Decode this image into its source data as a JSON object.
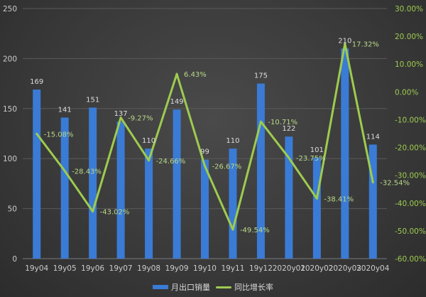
{
  "chart_data": {
    "type": "bar+line",
    "categories": [
      "19y04",
      "19y05",
      "19y06",
      "19y07",
      "19y08",
      "19y09",
      "19y10",
      "19y11",
      "19y12",
      "2020y01",
      "2020y02",
      "2020y03",
      "2020y04"
    ],
    "series": [
      {
        "name": "月出口销量",
        "type": "bar",
        "axis": "left",
        "values": [
          169,
          141,
          151,
          137,
          110,
          149,
          99,
          110,
          175,
          122,
          101,
          210,
          114
        ],
        "labels": [
          "169",
          "141",
          "151",
          "137",
          "110",
          "149",
          "99",
          "110",
          "175",
          "122",
          "101",
          "210",
          "114"
        ]
      },
      {
        "name": "同比增长率",
        "type": "line",
        "axis": "right",
        "values": [
          -15.08,
          -28.43,
          -43.02,
          -9.27,
          -24.66,
          6.43,
          -26.67,
          -49.54,
          -10.71,
          -23.75,
          -38.41,
          17.32,
          -32.54
        ],
        "labels": [
          "-15.08%",
          "-28.43%",
          "-43.02%",
          "-9.27%",
          "-24.66%",
          "6.43%",
          "-26.67%",
          "-49.54%",
          "-10.71%",
          "-23.75%",
          "-38.41%",
          "17.32%",
          "-32.54%"
        ]
      }
    ],
    "left_axis": {
      "min": 0,
      "max": 250,
      "ticks": [
        "0",
        "50",
        "100",
        "150",
        "200",
        "250"
      ]
    },
    "right_axis": {
      "min": -60,
      "max": 30,
      "ticks": [
        "-60.00%",
        "-50.00%",
        "-40.00%",
        "-30.00%",
        "-20.00%",
        "-10.00%",
        "0.00%",
        "10.00%",
        "20.00%",
        "30.00%"
      ]
    },
    "grid": true,
    "legend_position": "bottom",
    "colors": {
      "bar": "#3a7bd5",
      "line": "#9ecb4f",
      "left_tick_text": "#cccccc",
      "right_tick_text": "#9ecb4f",
      "label_text": "#dddddd",
      "line_label_text": "#b9d989",
      "grid": "#5a5a5a"
    }
  }
}
